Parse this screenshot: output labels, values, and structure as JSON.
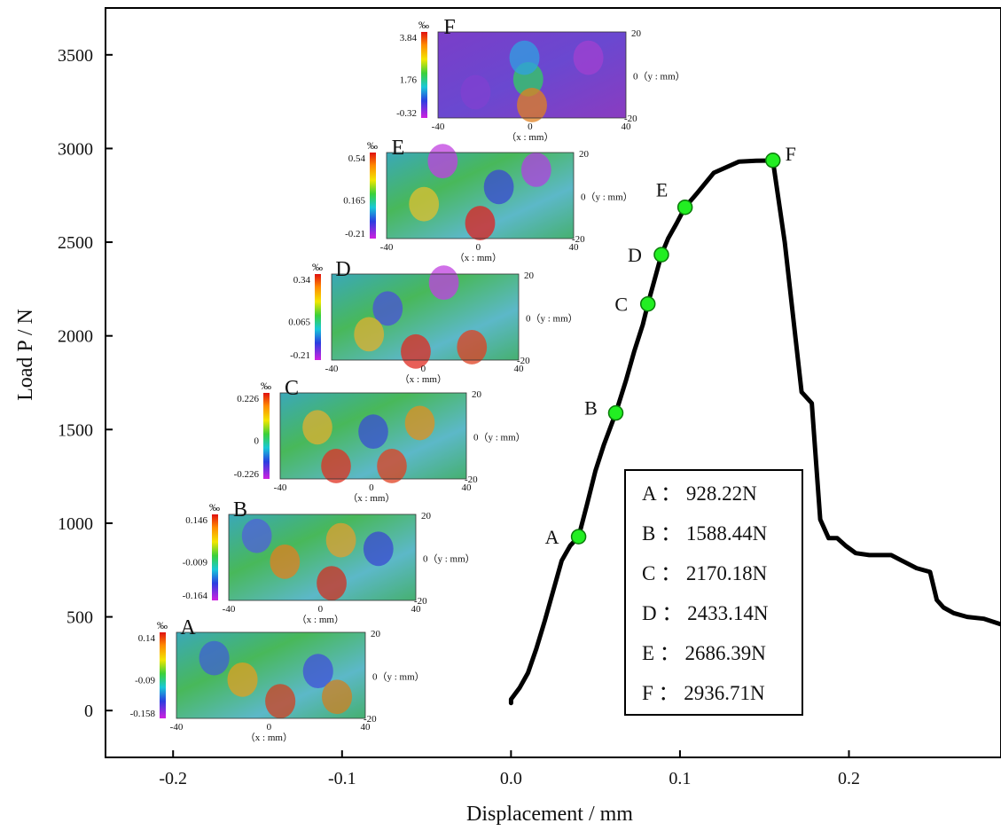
{
  "chart_data": {
    "type": "line",
    "title": "",
    "xlabel": "Displacement / mm",
    "ylabel": "Load P / N",
    "xlim": [
      -0.24,
      0.29
    ],
    "ylim": [
      -250,
      3750
    ],
    "xticks": [
      -0.2,
      -0.1,
      0.0,
      0.1,
      0.2
    ],
    "xtick_labels": [
      "-0.2",
      "-0.1",
      "0.0",
      "0.1",
      "0.2"
    ],
    "yticks": [
      0,
      500,
      1000,
      1500,
      2000,
      2500,
      3000,
      3500
    ],
    "ytick_labels": [
      "0",
      "500",
      "1000",
      "1500",
      "2000",
      "2500",
      "3000",
      "3500"
    ],
    "grid": false,
    "series": [
      {
        "x": [
          0.0,
          0.0,
          0.005,
          0.01,
          0.015,
          0.02,
          0.025,
          0.03,
          0.035,
          0.04,
          0.045,
          0.05,
          0.055,
          0.062,
          0.068,
          0.073,
          0.078,
          0.081,
          0.085,
          0.089,
          0.093,
          0.098,
          0.103,
          0.11,
          0.12,
          0.135,
          0.145,
          0.155,
          0.162,
          0.172,
          0.178,
          0.183,
          0.188,
          0.193,
          0.198,
          0.204,
          0.212,
          0.225,
          0.24,
          0.248,
          0.252,
          0.256,
          0.262,
          0.27,
          0.28,
          0.29
        ],
        "y": [
          40,
          60,
          120,
          200,
          330,
          480,
          640,
          800,
          880,
          928,
          1100,
          1280,
          1420,
          1588,
          1760,
          1920,
          2060,
          2170,
          2300,
          2433,
          2520,
          2600,
          2686,
          2760,
          2870,
          2930,
          2935,
          2936,
          2500,
          1700,
          1640,
          1020,
          920,
          920,
          880,
          840,
          830,
          830,
          760,
          740,
          590,
          550,
          520,
          500,
          490,
          460
        ]
      }
    ],
    "points": [
      {
        "label": "A",
        "x": 0.04,
        "y": 928.22
      },
      {
        "label": "B",
        "x": 0.062,
        "y": 1588.44
      },
      {
        "label": "C",
        "x": 0.081,
        "y": 2170.18
      },
      {
        "label": "D",
        "x": 0.089,
        "y": 2433.14
      },
      {
        "label": "E",
        "x": 0.103,
        "y": 2686.39
      },
      {
        "label": "F",
        "x": 0.155,
        "y": 2936.71
      }
    ],
    "legend_box": {
      "placement": "bottom-right",
      "entries": [
        "A ： 928.22N",
        "B ： 1588.44N",
        "C ： 2170.18N",
        "D ： 2433.14N",
        "E ： 2686.39N",
        "F ： 2936.71N"
      ]
    },
    "inset_maps": [
      {
        "letter": "A",
        "unit": "‰",
        "scale": [
          "0.14",
          "-0.09",
          "-0.158"
        ],
        "x_ticks": [
          "-40",
          "0",
          "40"
        ],
        "x_label": "（x : mm）",
        "y_ticks": [
          "20",
          "-20"
        ],
        "y_label": "0（y : mm）"
      },
      {
        "letter": "B",
        "unit": "‰",
        "scale": [
          "0.146",
          "-0.009",
          "-0.164"
        ],
        "x_ticks": [
          "-40",
          "0",
          "40"
        ],
        "x_label": "（x : mm）",
        "y_ticks": [
          "20",
          "-20"
        ],
        "y_label": "0（y : mm）"
      },
      {
        "letter": "C",
        "unit": "‰",
        "scale": [
          "0.226",
          "0",
          "-0.226"
        ],
        "x_ticks": [
          "-40",
          "0",
          "40"
        ],
        "x_label": "（x : mm）",
        "y_ticks": [
          "20",
          "-20"
        ],
        "y_label": "0（y : mm）"
      },
      {
        "letter": "D",
        "unit": "‰",
        "scale": [
          "0.34",
          "0.065",
          "-0.21"
        ],
        "x_ticks": [
          "-40",
          "0",
          "40"
        ],
        "x_label": "（x : mm）",
        "y_ticks": [
          "20",
          "-20"
        ],
        "y_label": "0（y : mm）"
      },
      {
        "letter": "E",
        "unit": "‰",
        "scale": [
          "0.54",
          "0.165",
          "-0.21"
        ],
        "x_ticks": [
          "-40",
          "0",
          "40"
        ],
        "x_label": "（x : mm）",
        "y_ticks": [
          "20",
          "-20"
        ],
        "y_label": "0（y : mm）"
      },
      {
        "letter": "F",
        "unit": "‰",
        "scale": [
          "3.84",
          "1.76",
          "-0.32"
        ],
        "x_ticks": [
          "-40",
          "0",
          "40"
        ],
        "x_label": "（x : mm）",
        "y_ticks": [
          "20",
          "-20"
        ],
        "y_label": "0（y : mm）"
      }
    ],
    "colors": {
      "curve": "#000000",
      "marker_fill": "#22ee22",
      "marker_stroke": "#0a7a0a"
    }
  }
}
